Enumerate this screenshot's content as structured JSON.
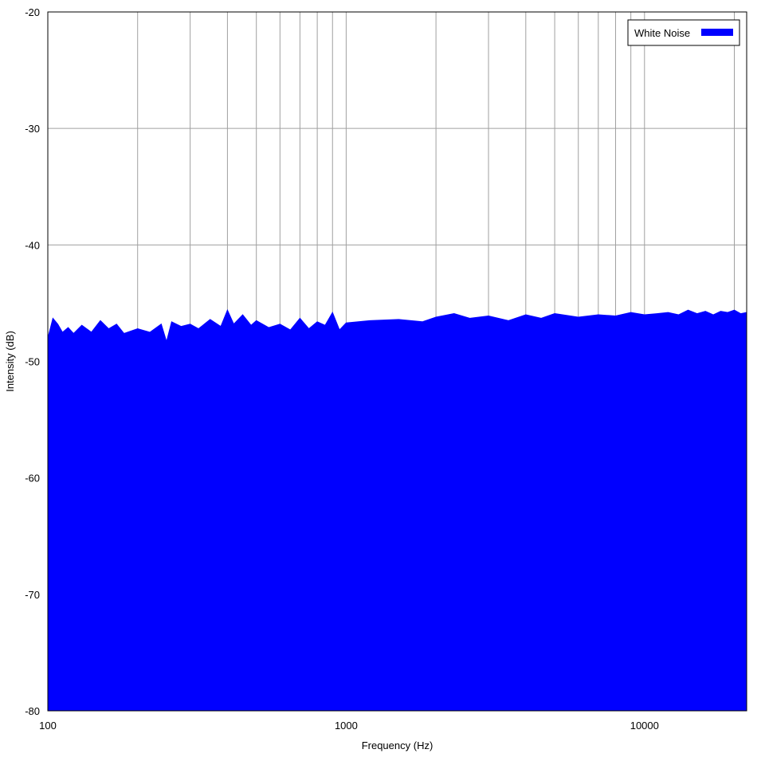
{
  "chart_data": {
    "type": "area",
    "title": "",
    "xlabel": "Frequency (Hz)",
    "ylabel": "Intensity (dB)",
    "x_scale": "log",
    "xlim": [
      100,
      22000
    ],
    "ylim": [
      -80,
      -20
    ],
    "x_major_ticks": [
      100,
      1000,
      10000
    ],
    "x_minor_gridlines": [
      200,
      300,
      400,
      500,
      600,
      700,
      800,
      900,
      2000,
      3000,
      4000,
      5000,
      6000,
      7000,
      8000,
      9000,
      20000
    ],
    "y_ticks": [
      -80,
      -70,
      -60,
      -50,
      -40,
      -30,
      -20
    ],
    "grid": true,
    "legend_position": "top-right",
    "series": [
      {
        "name": "White Noise",
        "color": "#0000ff",
        "baseline": -80,
        "x": [
          100,
          104,
          108,
          112,
          117,
          122,
          130,
          140,
          150,
          160,
          170,
          180,
          200,
          220,
          240,
          250,
          260,
          280,
          300,
          320,
          350,
          380,
          400,
          420,
          450,
          480,
          500,
          550,
          600,
          650,
          700,
          750,
          800,
          850,
          900,
          950,
          1000,
          1200,
          1500,
          1800,
          2000,
          2300,
          2600,
          3000,
          3500,
          4000,
          4500,
          5000,
          6000,
          7000,
          8000,
          9000,
          10000,
          11000,
          12000,
          13000,
          14000,
          15000,
          16000,
          17000,
          18000,
          19000,
          20000,
          21000,
          22000
        ],
        "values": [
          -48.0,
          -46.3,
          -46.8,
          -47.5,
          -47.1,
          -47.6,
          -46.9,
          -47.5,
          -46.5,
          -47.2,
          -46.8,
          -47.6,
          -47.2,
          -47.5,
          -46.8,
          -48.3,
          -46.6,
          -47.0,
          -46.8,
          -47.2,
          -46.4,
          -47.0,
          -45.6,
          -46.8,
          -46.0,
          -46.9,
          -46.5,
          -47.1,
          -46.8,
          -47.3,
          -46.3,
          -47.2,
          -46.6,
          -46.9,
          -45.8,
          -47.3,
          -46.7,
          -46.5,
          -46.4,
          -46.6,
          -46.2,
          -45.9,
          -46.3,
          -46.1,
          -46.5,
          -46.0,
          -46.3,
          -45.9,
          -46.2,
          -46.0,
          -46.1,
          -45.8,
          -46.0,
          -45.9,
          -45.8,
          -46.0,
          -45.6,
          -45.9,
          -45.7,
          -46.0,
          -45.7,
          -45.8,
          -45.6,
          -45.9,
          -45.8
        ]
      }
    ]
  }
}
